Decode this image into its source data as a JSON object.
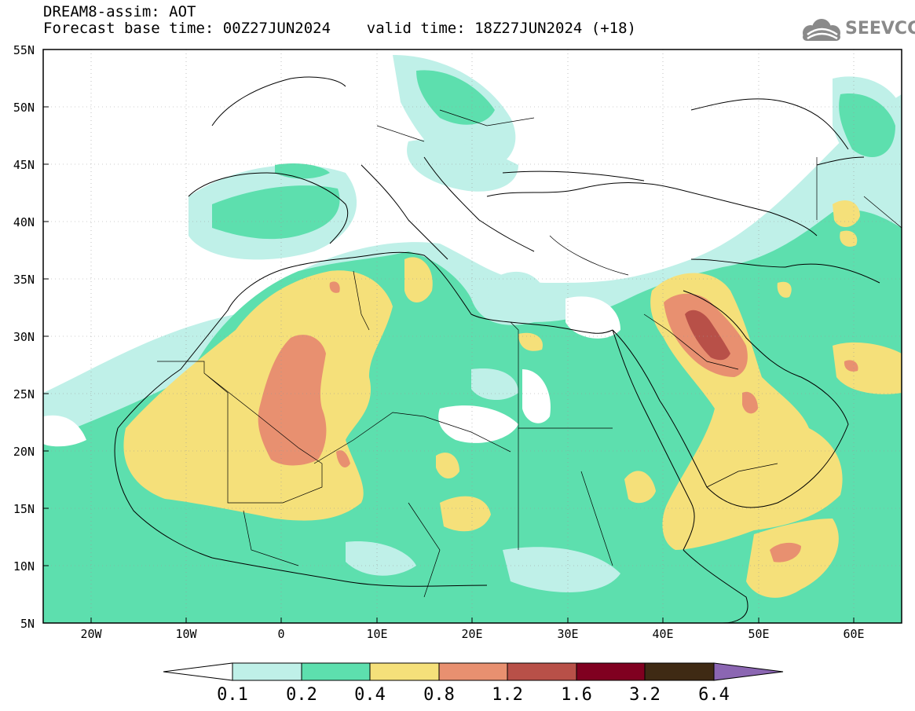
{
  "header": {
    "line1": "DREAM8-assim: AOT",
    "line2": "Forecast base time: 00Z27JUN2024    valid time: 18Z27JUN2024 (+18)"
  },
  "logo": {
    "text": "SEEVCCC",
    "icon": "cloud-icon"
  },
  "axes": {
    "lat_labels": [
      "55N",
      "50N",
      "45N",
      "40N",
      "35N",
      "30N",
      "25N",
      "20N",
      "15N",
      "10N",
      "5N"
    ],
    "lon_labels": [
      "20W",
      "10W",
      "0",
      "10E",
      "20E",
      "30E",
      "40E",
      "50E",
      "60E"
    ],
    "lon_range": [
      -25,
      65
    ],
    "lat_range": [
      5,
      55
    ],
    "grid": true
  },
  "colorbar": {
    "levels": [
      "0.1",
      "0.2",
      "0.4",
      "0.8",
      "1.2",
      "1.6",
      "3.2",
      "6.4"
    ],
    "colors": [
      "#ffffff",
      "#bff0e8",
      "#5ddfae",
      "#f5e07a",
      "#e89070",
      "#b85048",
      "#800020",
      "#3f2a14",
      "#8b66b2"
    ]
  }
}
